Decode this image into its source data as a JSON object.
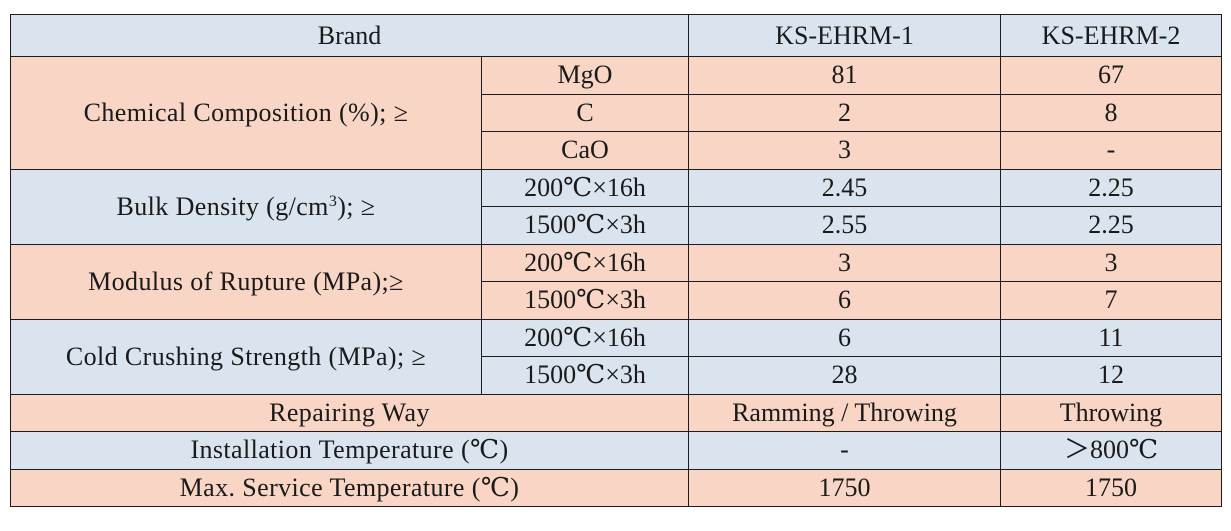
{
  "header": {
    "brand": "Brand",
    "product_1": "KS-EHRM-1",
    "product_2": "KS-EHRM-2"
  },
  "chemical": {
    "label": "Chemical Composition (%); ≥",
    "rows": [
      {
        "item": "MgO",
        "v1": "81",
        "v2": "67"
      },
      {
        "item": "C",
        "v1": "2",
        "v2": "8"
      },
      {
        "item": "CaO",
        "v1": "3",
        "v2": "-"
      }
    ]
  },
  "bulk_density": {
    "label_prefix": "Bulk Density (g/cm",
    "label_sup": "3",
    "label_suffix": "); ≥",
    "rows": [
      {
        "item": "200℃×16h",
        "v1": "2.45",
        "v2": "2.25"
      },
      {
        "item": "1500℃×3h",
        "v1": "2.55",
        "v2": "2.25"
      }
    ]
  },
  "rupture": {
    "label": "Modulus of Rupture (MPa);≥",
    "rows": [
      {
        "item": "200℃×16h",
        "v1": "3",
        "v2": "3"
      },
      {
        "item": "1500℃×3h",
        "v1": "6",
        "v2": "7"
      }
    ]
  },
  "crushing": {
    "label": "Cold Crushing Strength (MPa); ≥",
    "rows": [
      {
        "item": "200℃×16h",
        "v1": "6",
        "v2": "11"
      },
      {
        "item": "1500℃×3h",
        "v1": "28",
        "v2": "12"
      }
    ]
  },
  "repairing": {
    "label": "Repairing Way",
    "v1": "Ramming / Throwing",
    "v2": "Throwing"
  },
  "installation": {
    "label": "Installation Temperature (℃)",
    "v1": "-",
    "v2": "＞800℃"
  },
  "max_service": {
    "label": "Max. Service Temperature (℃)",
    "v1": "1750",
    "v2": "1750"
  },
  "colors": {
    "header_bg": "#dae4ef",
    "peach_bg": "#f8d5c5",
    "border": "#1c1c1c"
  }
}
